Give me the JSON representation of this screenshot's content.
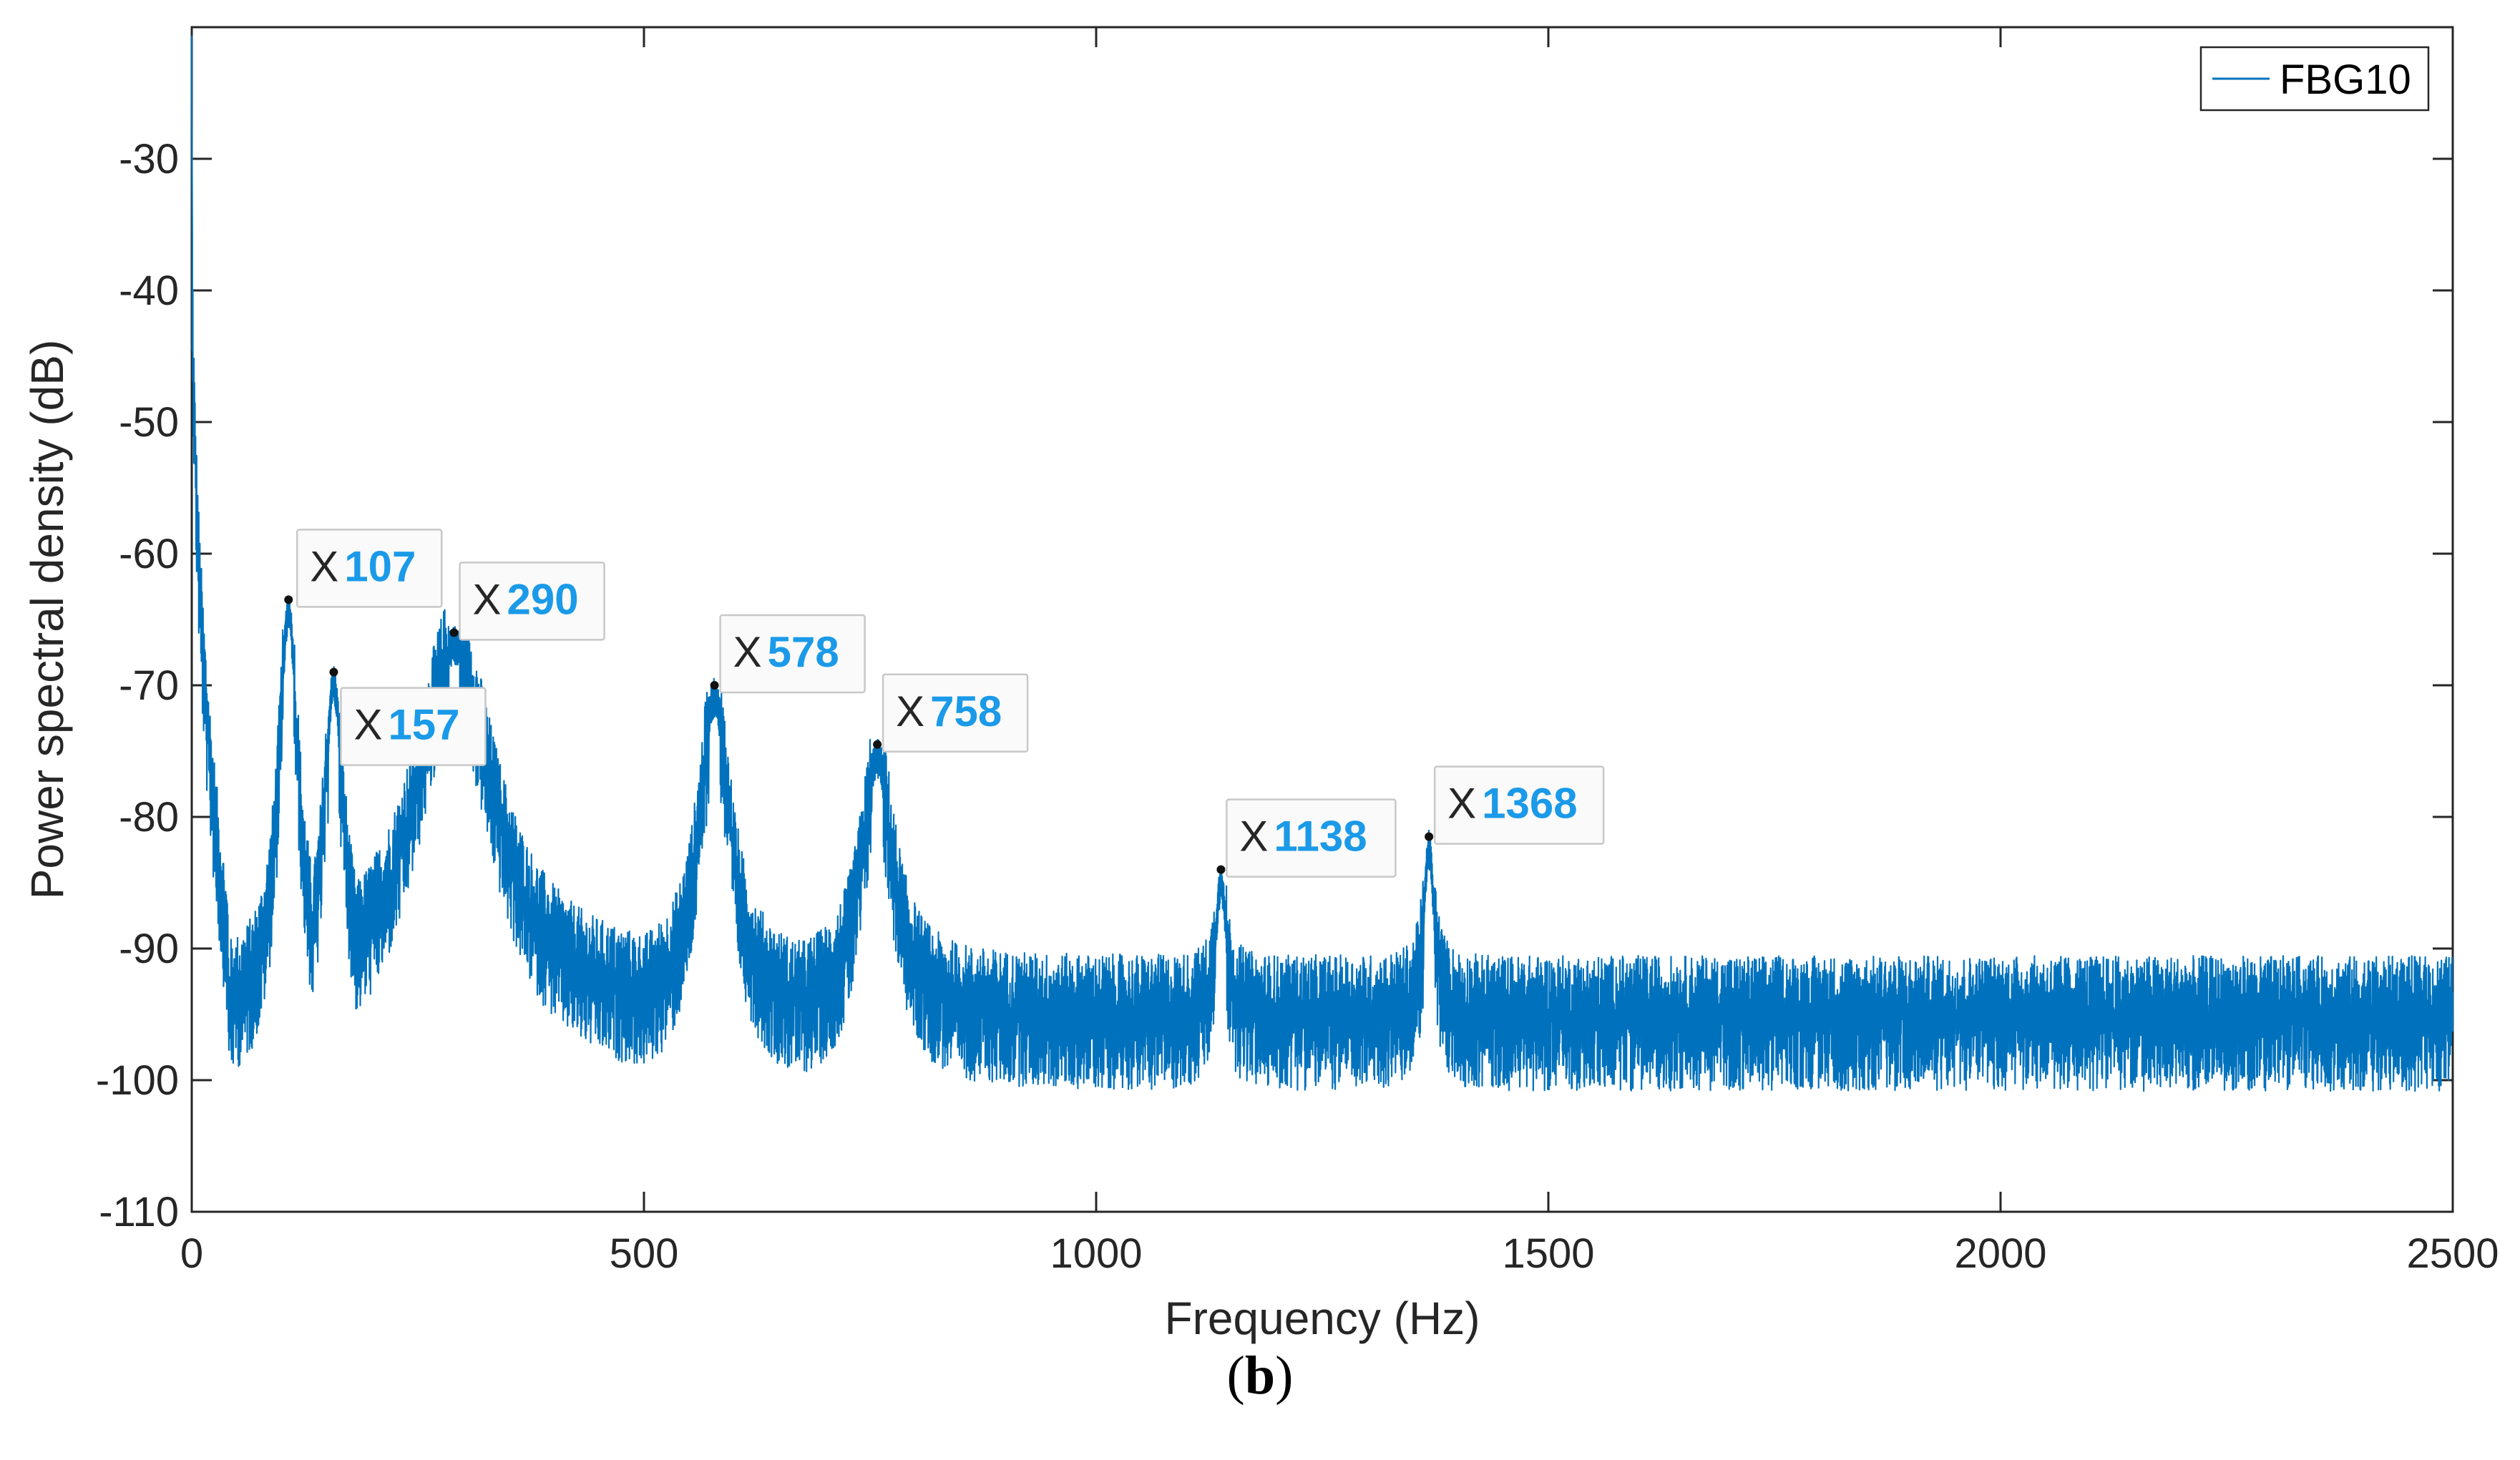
{
  "chart_data": {
    "type": "line",
    "title": "",
    "xlabel": "Frequency (Hz)",
    "ylabel": "Power spectral density (dB)",
    "xlim": [
      0,
      2500
    ],
    "ylim": [
      -110,
      -20
    ],
    "xticks": [
      0,
      500,
      1000,
      1500,
      2000,
      2500
    ],
    "yticks": [
      -110,
      -100,
      -90,
      -80,
      -70,
      -60,
      -50,
      -40,
      -30
    ],
    "grid": false,
    "legend": {
      "position": "top-right",
      "entries": [
        "FBG10"
      ]
    },
    "series": [
      {
        "name": "FBG10",
        "color": "#0072bd",
        "noise_floor_db": -93.5,
        "start_value_db": -22,
        "peaks": [
          {
            "x": 107,
            "y": -63.5
          },
          {
            "x": 157,
            "y": -69
          },
          {
            "x": 290,
            "y": -66
          },
          {
            "x": 578,
            "y": -70
          },
          {
            "x": 758,
            "y": -74.5
          },
          {
            "x": 1138,
            "y": -84
          },
          {
            "x": 1368,
            "y": -81.5
          }
        ]
      }
    ],
    "annotations": [
      {
        "prefix": "X",
        "label": "107",
        "x": 107,
        "y": -63.5
      },
      {
        "prefix": "X",
        "label": "157",
        "x": 157,
        "y": -69
      },
      {
        "prefix": "X",
        "label": "290",
        "x": 290,
        "y": -66
      },
      {
        "prefix": "X",
        "label": "578",
        "x": 578,
        "y": -70
      },
      {
        "prefix": "X",
        "label": "758",
        "x": 758,
        "y": -74.5
      },
      {
        "prefix": "X",
        "label": "1138",
        "x": 1138,
        "y": -84
      },
      {
        "prefix": "X",
        "label": "1368",
        "x": 1368,
        "y": -81.5
      }
    ],
    "annotation_value_color": "#1a9ae8"
  },
  "caption": {
    "open": "(",
    "letter": "b",
    "close": ")"
  }
}
